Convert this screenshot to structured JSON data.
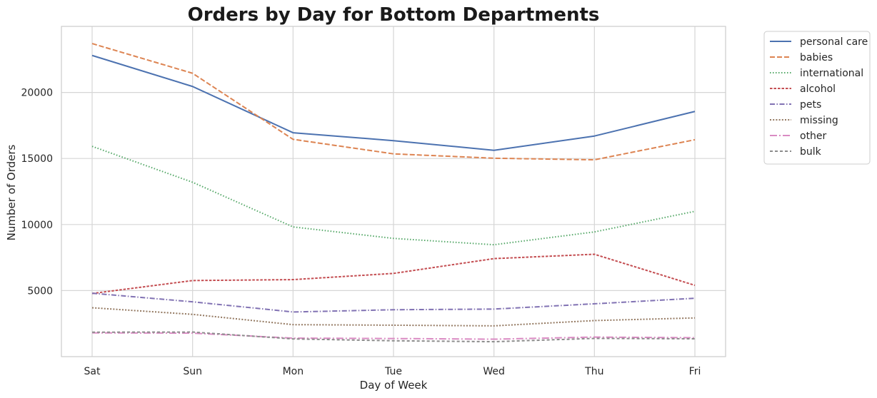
{
  "chart_data": {
    "type": "line",
    "title": "Orders by Day for Bottom Departments",
    "xlabel": "Day of Week",
    "ylabel": "Number of Orders",
    "categories": [
      "Sat",
      "Sun",
      "Mon",
      "Tue",
      "Wed",
      "Thu",
      "Fri"
    ],
    "ylim": [
      0,
      25000
    ],
    "yticks": [
      5000,
      10000,
      15000,
      20000
    ],
    "grid": true,
    "legend_position": "outside-top-right",
    "series": [
      {
        "name": "personal care",
        "color": "#4c72b0",
        "dash": "solid",
        "values": [
          22800,
          20450,
          16950,
          16350,
          15620,
          16700,
          18560
        ]
      },
      {
        "name": "babies",
        "color": "#dd8452",
        "dash": "dashed",
        "values": [
          23700,
          21450,
          16450,
          15350,
          15020,
          14900,
          16420
        ]
      },
      {
        "name": "international",
        "color": "#55a868",
        "dash": "dotted",
        "values": [
          15920,
          13200,
          9820,
          8950,
          8470,
          9440,
          11000
        ]
      },
      {
        "name": "alcohol",
        "color": "#c44e52",
        "dash": "densedash",
        "values": [
          4780,
          5760,
          5830,
          6300,
          7420,
          7750,
          5400
        ]
      },
      {
        "name": "pets",
        "color": "#8172b3",
        "dash": "dashdot",
        "values": [
          4800,
          4150,
          3380,
          3550,
          3600,
          4000,
          4420
        ]
      },
      {
        "name": "missing",
        "color": "#937860",
        "dash": "densedot",
        "values": [
          3700,
          3200,
          2420,
          2380,
          2330,
          2730,
          2930
        ]
      },
      {
        "name": "other",
        "color": "#da8bc3",
        "dash": "longdashdot",
        "values": [
          1800,
          1780,
          1400,
          1370,
          1320,
          1480,
          1430
        ]
      },
      {
        "name": "bulk",
        "color": "#8c8c8c",
        "dash": "looselydashed",
        "values": [
          1850,
          1860,
          1340,
          1200,
          1130,
          1380,
          1350
        ]
      }
    ]
  }
}
